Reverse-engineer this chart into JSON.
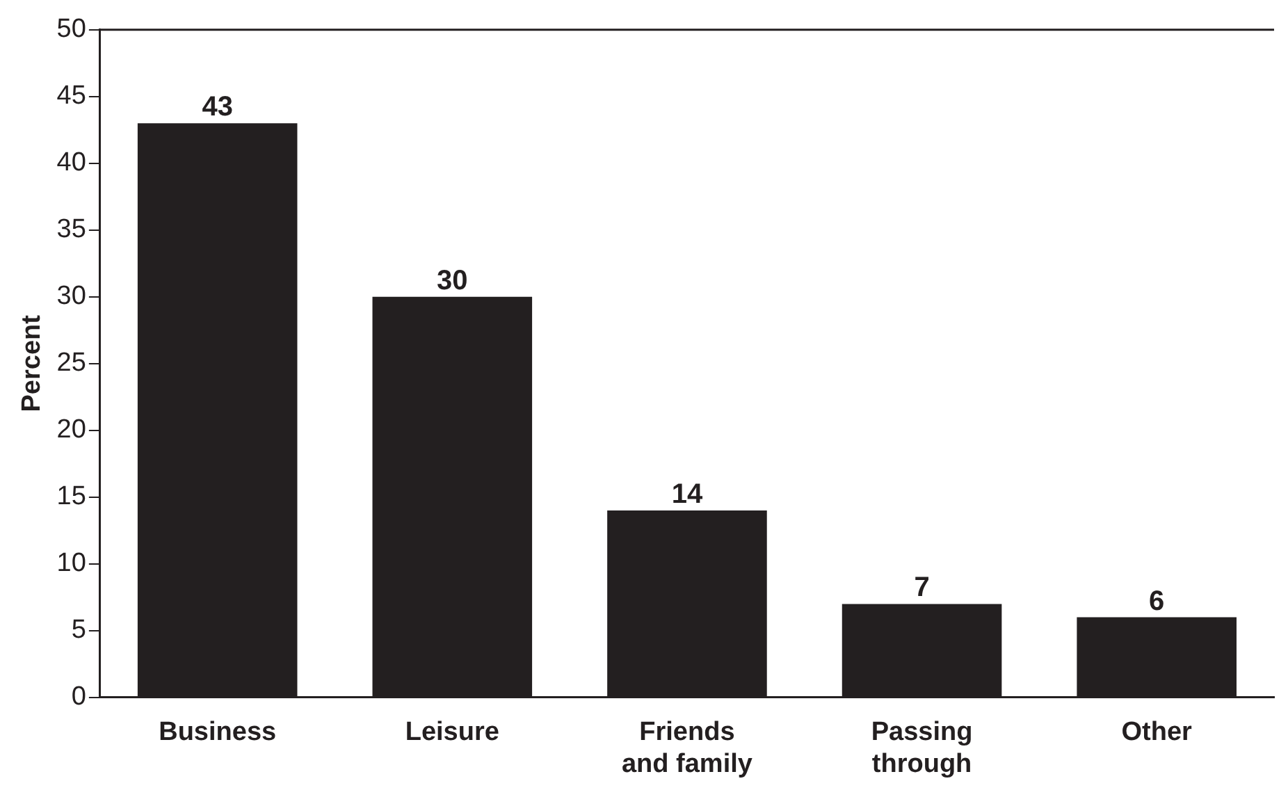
{
  "chart_data": {
    "type": "bar",
    "ylabel": "Percent",
    "categories": [
      "Business",
      "Leisure",
      "Friends and family",
      "Passing through",
      "Other"
    ],
    "values": [
      43,
      30,
      14,
      7,
      6
    ],
    "color": "#231f20",
    "ylim": [
      0,
      50
    ],
    "yticks": [
      0,
      5,
      10,
      15,
      20,
      25,
      30,
      35,
      40,
      45,
      50
    ],
    "grid": false,
    "legend": false,
    "data_labels": true
  }
}
